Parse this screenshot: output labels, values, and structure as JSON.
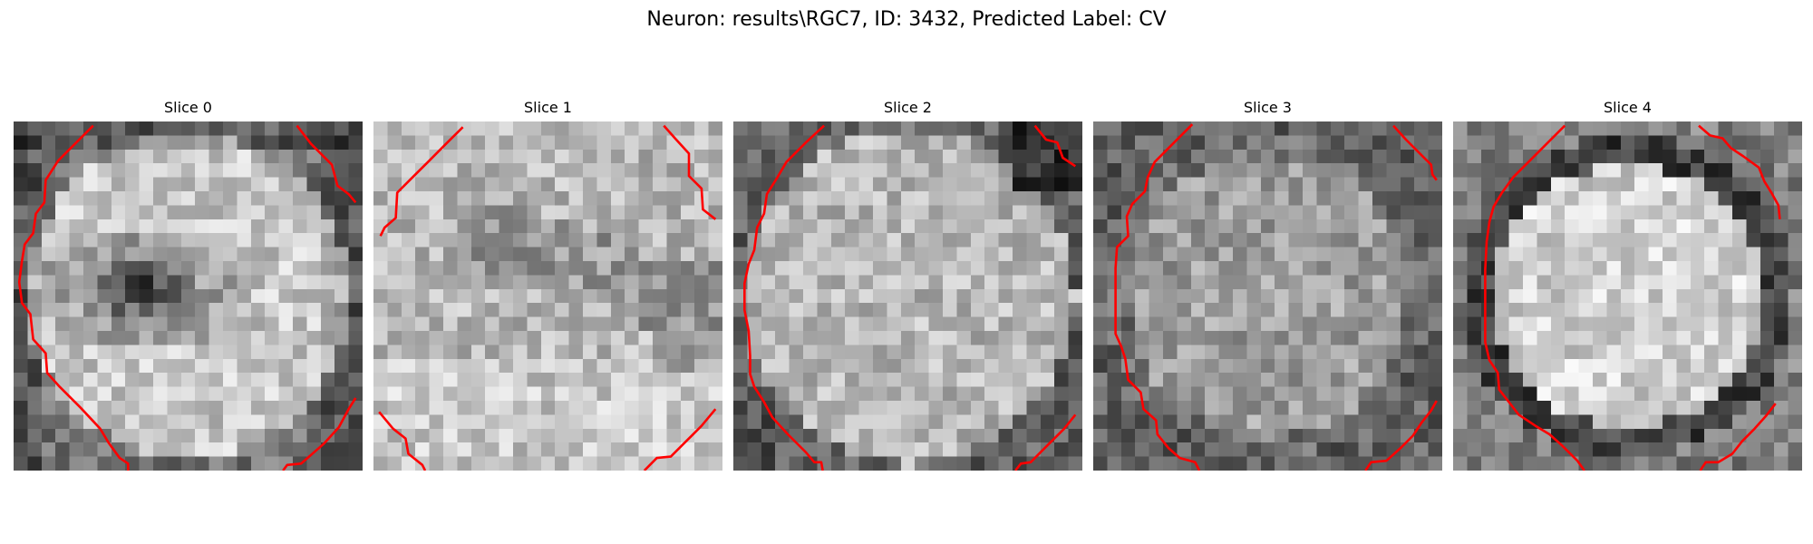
{
  "figure": {
    "title": "Neuron: results\\RGC7, ID: 3432, Predicted Label: CV",
    "contour_color": "#ff0000"
  },
  "panels": [
    {
      "title": "Slice 0"
    },
    {
      "title": "Slice 1"
    },
    {
      "title": "Slice 2"
    },
    {
      "title": "Slice 3"
    },
    {
      "title": "Slice 4"
    }
  ]
}
